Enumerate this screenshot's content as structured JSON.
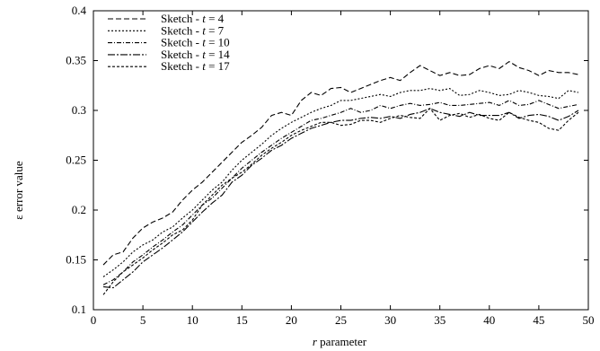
{
  "chart_data": {
    "type": "line",
    "xlabel_italic": "r",
    "xlabel_rest": " parameter",
    "ylabel": "ε error value",
    "xlim": [
      0,
      50
    ],
    "ylim": [
      0.1,
      0.4
    ],
    "xticks": [
      0,
      5,
      10,
      15,
      20,
      25,
      30,
      35,
      40,
      45,
      50
    ],
    "yticks": [
      0.1,
      0.15,
      0.2,
      0.25,
      0.3,
      0.35,
      0.4
    ],
    "ytick_labels": [
      "0.1",
      "0.15",
      "0.2",
      "0.25",
      "0.3",
      "0.35",
      "0.4"
    ],
    "grid": false,
    "legend_position": "top-left",
    "x": [
      1,
      2,
      3,
      4,
      5,
      6,
      7,
      8,
      9,
      10,
      11,
      12,
      13,
      14,
      15,
      16,
      17,
      18,
      19,
      20,
      21,
      22,
      23,
      24,
      25,
      26,
      27,
      28,
      29,
      30,
      31,
      32,
      33,
      34,
      35,
      36,
      37,
      38,
      39,
      40,
      41,
      42,
      43,
      44,
      45,
      46,
      47,
      48,
      49
    ],
    "series": [
      {
        "legend_prefix": "Sketch - ",
        "legend_t": "t",
        "legend_suffix": " = 4",
        "dash": "6,3",
        "values": [
          0.145,
          0.155,
          0.158,
          0.172,
          0.182,
          0.188,
          0.192,
          0.198,
          0.21,
          0.22,
          0.228,
          0.238,
          0.248,
          0.258,
          0.268,
          0.275,
          0.283,
          0.295,
          0.298,
          0.295,
          0.31,
          0.318,
          0.315,
          0.322,
          0.323,
          0.318,
          0.322,
          0.326,
          0.33,
          0.333,
          0.33,
          0.338,
          0.345,
          0.34,
          0.335,
          0.338,
          0.335,
          0.336,
          0.342,
          0.345,
          0.342,
          0.349,
          0.343,
          0.34,
          0.335,
          0.34,
          0.338,
          0.338,
          0.336
        ]
      },
      {
        "legend_prefix": "Sketch - ",
        "legend_t": "t",
        "legend_suffix": " = 7",
        "dash": "2,2",
        "values": [
          0.133,
          0.14,
          0.148,
          0.158,
          0.165,
          0.17,
          0.178,
          0.183,
          0.192,
          0.2,
          0.21,
          0.22,
          0.228,
          0.24,
          0.25,
          0.258,
          0.266,
          0.275,
          0.282,
          0.288,
          0.293,
          0.298,
          0.302,
          0.305,
          0.31,
          0.31,
          0.312,
          0.314,
          0.316,
          0.314,
          0.318,
          0.32,
          0.32,
          0.322,
          0.32,
          0.322,
          0.315,
          0.316,
          0.32,
          0.318,
          0.315,
          0.316,
          0.32,
          0.318,
          0.315,
          0.314,
          0.312,
          0.32,
          0.318
        ]
      },
      {
        "legend_prefix": "Sketch - ",
        "legend_t": "t",
        "legend_suffix": " = 10",
        "dash": "5,2,1,2",
        "values": [
          0.125,
          0.13,
          0.138,
          0.148,
          0.155,
          0.163,
          0.17,
          0.178,
          0.185,
          0.195,
          0.205,
          0.212,
          0.222,
          0.232,
          0.242,
          0.25,
          0.258,
          0.265,
          0.272,
          0.278,
          0.284,
          0.29,
          0.292,
          0.295,
          0.298,
          0.302,
          0.298,
          0.3,
          0.305,
          0.302,
          0.305,
          0.307,
          0.305,
          0.306,
          0.308,
          0.305,
          0.305,
          0.306,
          0.307,
          0.308,
          0.305,
          0.31,
          0.305,
          0.306,
          0.31,
          0.306,
          0.302,
          0.304,
          0.306
        ]
      },
      {
        "legend_prefix": "Sketch - ",
        "legend_t": "t",
        "legend_suffix": " = 14",
        "dash": "8,2,2,2",
        "values": [
          0.123,
          0.122,
          0.13,
          0.138,
          0.148,
          0.155,
          0.162,
          0.17,
          0.178,
          0.188,
          0.198,
          0.207,
          0.215,
          0.228,
          0.235,
          0.245,
          0.252,
          0.26,
          0.265,
          0.272,
          0.277,
          0.282,
          0.285,
          0.288,
          0.29,
          0.29,
          0.292,
          0.293,
          0.292,
          0.294,
          0.292,
          0.296,
          0.298,
          0.302,
          0.298,
          0.296,
          0.294,
          0.298,
          0.295,
          0.295,
          0.295,
          0.298,
          0.292,
          0.295,
          0.296,
          0.294,
          0.29,
          0.294,
          0.3
        ]
      },
      {
        "legend_prefix": "Sketch - ",
        "legend_t": "t",
        "legend_suffix": " = 17",
        "dash": "3,2",
        "values": [
          0.115,
          0.128,
          0.138,
          0.145,
          0.152,
          0.16,
          0.167,
          0.175,
          0.18,
          0.19,
          0.205,
          0.215,
          0.225,
          0.232,
          0.238,
          0.246,
          0.255,
          0.262,
          0.268,
          0.275,
          0.28,
          0.284,
          0.288,
          0.288,
          0.285,
          0.286,
          0.29,
          0.29,
          0.288,
          0.292,
          0.295,
          0.293,
          0.292,
          0.302,
          0.29,
          0.295,
          0.297,
          0.293,
          0.296,
          0.292,
          0.29,
          0.298,
          0.293,
          0.29,
          0.288,
          0.282,
          0.28,
          0.29,
          0.298
        ]
      }
    ]
  }
}
